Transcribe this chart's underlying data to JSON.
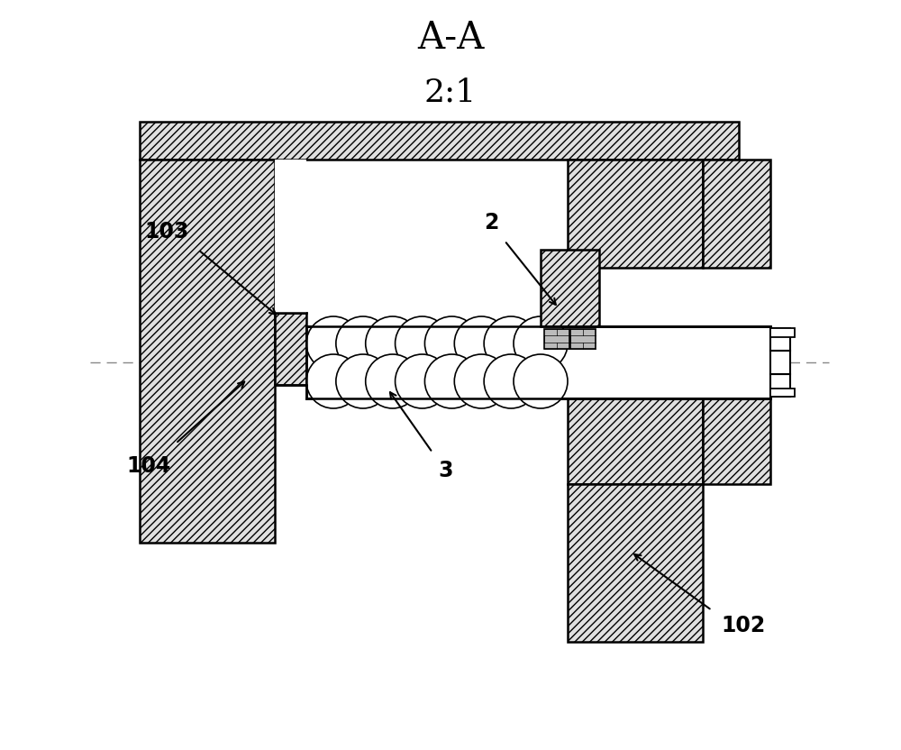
{
  "title1": "A-A",
  "title2": "2:1",
  "label_103": "103",
  "label_104": "104",
  "label_2": "2",
  "label_3": "3",
  "label_102": "102",
  "bg_color": "#ffffff",
  "line_color": "#000000",
  "figsize": [
    10,
    8.32
  ]
}
